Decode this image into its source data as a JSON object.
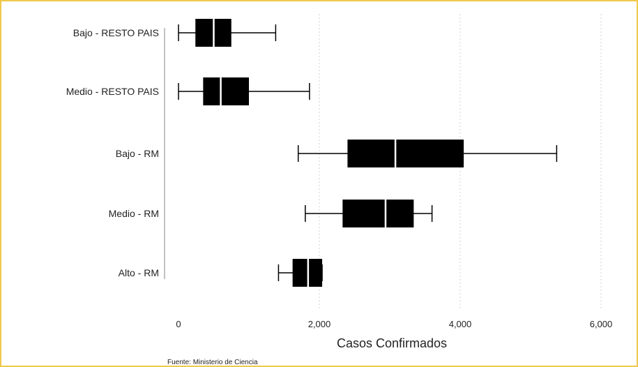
{
  "chart_data": {
    "type": "boxplot",
    "title": "",
    "xlabel": "Casos Confirmados",
    "ylabel": "",
    "xlim": [
      0,
      6000
    ],
    "xticks": [
      0,
      2000,
      4000,
      6000
    ],
    "xtick_labels": [
      "0",
      "2,000",
      "4,000",
      "6,000"
    ],
    "grid": "vertical dotted",
    "categories": [
      "Bajo - RESTO PAIS",
      "Medio - RESTO PAIS",
      "Bajo - RM",
      "Medio - RM",
      "Alto - RM"
    ],
    "boxes": [
      {
        "category": "Bajo - RESTO PAIS",
        "whisker_low": 0,
        "q1": 240,
        "median": 500,
        "q3": 750,
        "whisker_high": 1380
      },
      {
        "category": "Medio - RESTO PAIS",
        "whisker_low": 0,
        "q1": 350,
        "median": 600,
        "q3": 1000,
        "whisker_high": 1860
      },
      {
        "category": "Bajo - RM",
        "whisker_low": 1700,
        "q1": 2400,
        "median": 3080,
        "q3": 4050,
        "whisker_high": 5370
      },
      {
        "category": "Medio - RM",
        "whisker_low": 1800,
        "q1": 2330,
        "median": 2940,
        "q3": 3340,
        "whisker_high": 3600
      },
      {
        "category": "Alto - RM",
        "whisker_low": 1420,
        "q1": 1620,
        "median": 1840,
        "q3": 2040,
        "whisker_high": 2040
      }
    ],
    "box_color": "#000000",
    "median_color": "#ffffff"
  },
  "source_note": "Fuente:  Ministerio de Ciencia",
  "colors": {
    "frame_border": "#f0c84a",
    "grid": "#d0d0d0",
    "axis": "#999999"
  }
}
